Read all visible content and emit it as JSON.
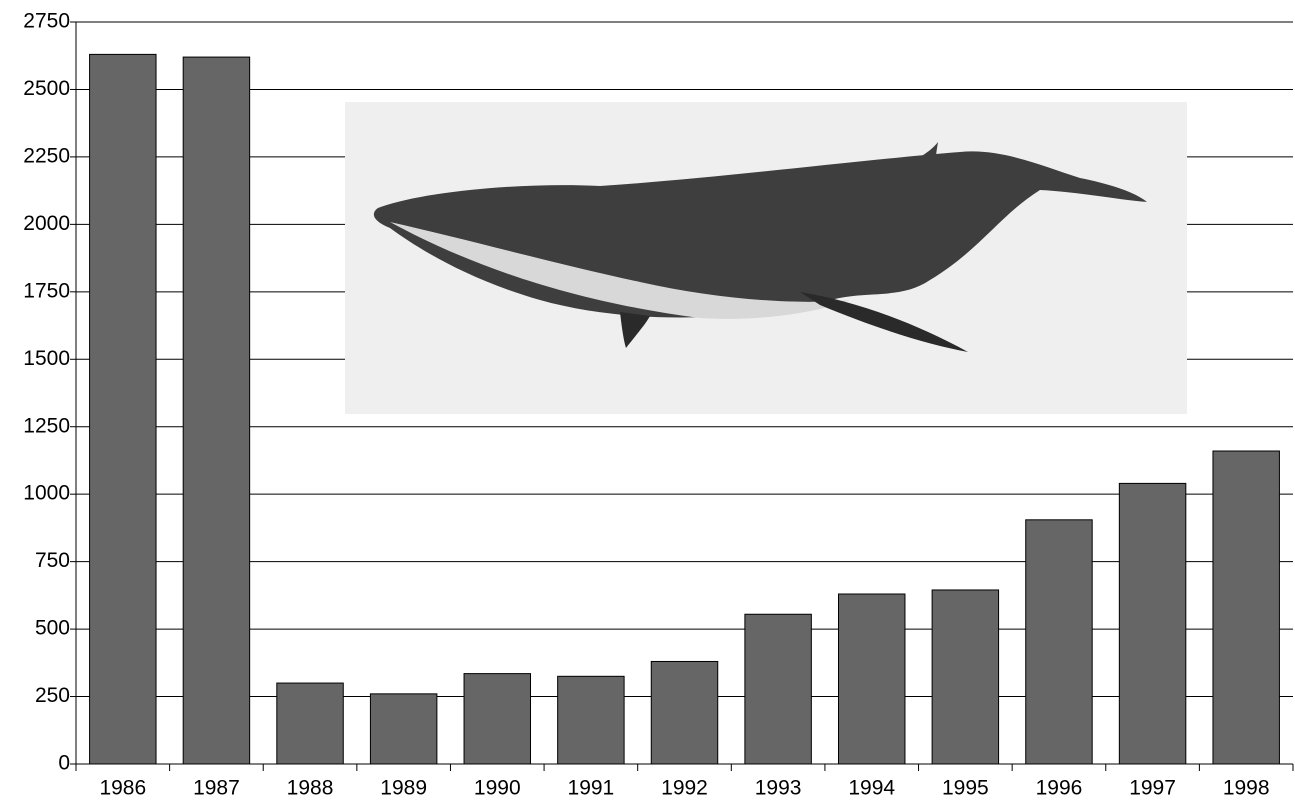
{
  "chart_data": {
    "type": "bar",
    "categories": [
      "1986",
      "1987",
      "1988",
      "1989",
      "1990",
      "1991",
      "1992",
      "1993",
      "1994",
      "1995",
      "1996",
      "1997",
      "1998"
    ],
    "values": [
      2630,
      2620,
      300,
      260,
      335,
      325,
      380,
      555,
      630,
      645,
      905,
      1040,
      1160
    ],
    "color": "#666666",
    "ylim": [
      0,
      2750
    ],
    "yticks": [
      0,
      250,
      500,
      750,
      1000,
      1250,
      1500,
      1750,
      2000,
      2250,
      2500,
      2750
    ],
    "grid": true
  }
}
